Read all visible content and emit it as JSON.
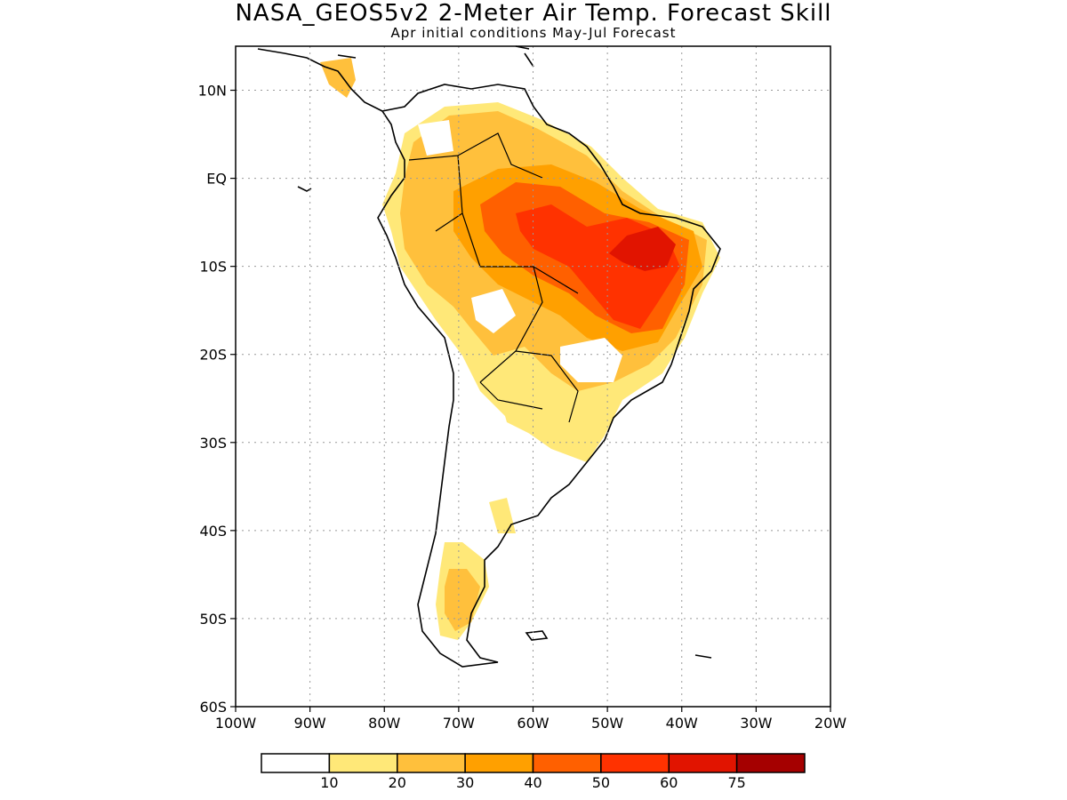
{
  "title": "NASA_GEOS5v2 2-Meter Air Temp. Forecast Skill",
  "subtitle": "Apr initial conditions   May-Jul Forecast",
  "map": {
    "lon_range": [
      -100,
      -20
    ],
    "lat_range": [
      -60,
      15
    ],
    "lat_ticks": [
      {
        "value": 10,
        "label": "10N"
      },
      {
        "value": 0,
        "label": "EQ"
      },
      {
        "value": -10,
        "label": "10S"
      },
      {
        "value": -20,
        "label": "20S"
      },
      {
        "value": -30,
        "label": "30S"
      },
      {
        "value": -40,
        "label": "40S"
      },
      {
        "value": -50,
        "label": "50S"
      },
      {
        "value": -60,
        "label": "60S"
      }
    ],
    "lon_ticks": [
      {
        "value": -100,
        "label": "100W"
      },
      {
        "value": -90,
        "label": "90W"
      },
      {
        "value": -80,
        "label": "80W"
      },
      {
        "value": -70,
        "label": "70W"
      },
      {
        "value": -60,
        "label": "60W"
      },
      {
        "value": -50,
        "label": "50W"
      },
      {
        "value": -40,
        "label": "40W"
      },
      {
        "value": -30,
        "label": "30W"
      },
      {
        "value": -20,
        "label": "20W"
      }
    ],
    "grid": true,
    "coastline_color": "#000000"
  },
  "colorbar": {
    "colors": [
      "#ffffff",
      "#ffe878",
      "#ffc03c",
      "#ffa000",
      "#ff6000",
      "#ff3200",
      "#e11400",
      "#a50000"
    ],
    "labels": [
      "10",
      "20",
      "30",
      "40",
      "50",
      "60",
      "75"
    ]
  }
}
